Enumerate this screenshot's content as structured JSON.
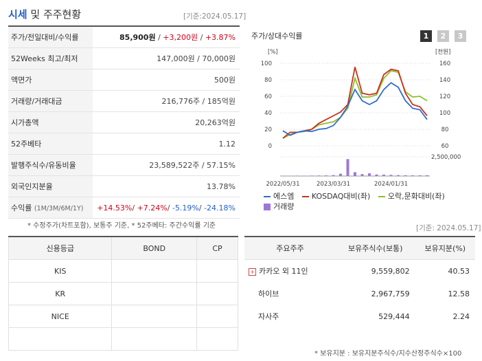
{
  "header": {
    "title_hl": "시세",
    "title_rest": " 및 주주현황",
    "as_of": "[기준:2024.05.17]"
  },
  "price_table": [
    {
      "label": "주가/전일대비/수익률",
      "parts": [
        {
          "t": "85,900원",
          "c": "bold"
        },
        {
          "t": " / ",
          "c": ""
        },
        {
          "t": "+3,200원",
          "c": "red"
        },
        {
          "t": " / ",
          "c": ""
        },
        {
          "t": "+3.87%",
          "c": "red"
        }
      ]
    },
    {
      "label": "52Weeks 최고/최저",
      "parts": [
        {
          "t": "147,000원 / 70,000원",
          "c": ""
        }
      ]
    },
    {
      "label": "액면가",
      "parts": [
        {
          "t": "500원",
          "c": ""
        }
      ]
    },
    {
      "label": "거래량/거래대금",
      "parts": [
        {
          "t": "216,776주 / 185억원",
          "c": ""
        }
      ]
    },
    {
      "label": "시가총액",
      "parts": [
        {
          "t": "20,263억원",
          "c": ""
        }
      ]
    },
    {
      "label": "52주베타",
      "parts": [
        {
          "t": "1.12",
          "c": ""
        }
      ]
    },
    {
      "label": "발행주식수/유동비율",
      "parts": [
        {
          "t": "23,589,522주 / 57.15%",
          "c": ""
        }
      ]
    },
    {
      "label": "외국인지분율",
      "parts": [
        {
          "t": "13.78%",
          "c": ""
        }
      ]
    },
    {
      "label": "수익률",
      "label_sub": "(1M/3M/6M/1Y)",
      "parts": [
        {
          "t": "+14.53%",
          "c": "red"
        },
        {
          "t": "/ ",
          "c": ""
        },
        {
          "t": "+7.24%",
          "c": "red"
        },
        {
          "t": "/ ",
          "c": ""
        },
        {
          "t": "-5.19%",
          "c": "blue"
        },
        {
          "t": "/ ",
          "c": ""
        },
        {
          "t": "-24.18%",
          "c": "blue"
        }
      ]
    }
  ],
  "price_note": "* 수정주가(차트포함), 보통주 기준, * 52주베타: 주간수익률 기준",
  "as_of2": "[기준: 2024.05.17]",
  "chart": {
    "title": "주가/상대수익률",
    "tabs": [
      "1",
      "2",
      "3"
    ],
    "left_unit": "[%]",
    "right_unit": "[천원]",
    "left_ticks": [
      "100",
      "80",
      "60",
      "40",
      "20",
      "0"
    ],
    "right_ticks": [
      "160",
      "140",
      "120",
      "100",
      "80",
      "60"
    ],
    "volume_tick": "2,500,000",
    "x_ticks": [
      "2022/05/31",
      "2023/03/31",
      "2024/01/31"
    ],
    "legend": [
      "에스엠",
      "KOSDAQ대비(좌)",
      "오락,문화대비(좌)",
      "거래량"
    ],
    "colors": {
      "sm": "#2f6bd0",
      "kosdaq": "#c8321e",
      "culture": "#8cbf2a",
      "volume": "#9c78d6"
    }
  },
  "chart_data": {
    "type": "line",
    "x": [
      "2022/05/31",
      "",
      "",
      "",
      "",
      "",
      "",
      "2023/03/31",
      "",
      "",
      "",
      "",
      "",
      "",
      "",
      "2024/01/31",
      "",
      "",
      "",
      "",
      ""
    ],
    "series": [
      {
        "name": "에스엠",
        "values": [
          10,
          4,
          8,
          10,
          9,
          12,
          13,
          17,
          28,
          43,
          65,
          50,
          45,
          50,
          65,
          74,
          68,
          50,
          40,
          38,
          25
        ]
      },
      {
        "name": "KOSDAQ대비(좌)",
        "values": [
          0,
          8,
          8,
          10,
          12,
          20,
          25,
          30,
          35,
          45,
          95,
          60,
          58,
          60,
          85,
          92,
          90,
          60,
          45,
          42,
          30
        ]
      },
      {
        "name": "오락,문화대비(좌)",
        "values": [
          0,
          5,
          8,
          9,
          12,
          18,
          20,
          22,
          28,
          40,
          80,
          55,
          55,
          58,
          80,
          90,
          88,
          62,
          55,
          56,
          50
        ]
      }
    ],
    "volume": [
      40000,
      30000,
      50000,
      45000,
      60000,
      70000,
      80000,
      120000,
      300000,
      2200000,
      500000,
      250000,
      350000,
      200000,
      180000,
      150000,
      120000,
      100000,
      90000,
      90000,
      100000
    ]
  },
  "credit": {
    "headers": [
      "신용등급",
      "BOND",
      "CP"
    ],
    "rows": [
      [
        "KIS",
        "",
        ""
      ],
      [
        "KR",
        "",
        ""
      ],
      [
        "NICE",
        "",
        ""
      ],
      [
        "",
        "",
        ""
      ]
    ]
  },
  "holders": {
    "headers": [
      "주요주주",
      "보유주식수(보통)",
      "보유지분(%)"
    ],
    "rows": [
      {
        "name": "카카오 외 11인",
        "shares": "9,559,802",
        "pct": "40.53"
      },
      {
        "name": "하이브",
        "shares": "2,967,759",
        "pct": "12.58"
      },
      {
        "name": "자사주",
        "shares": "529,444",
        "pct": "2.24"
      }
    ],
    "note": "* 보유지분 : 보유지분주식수/지수산정주식수×100"
  }
}
